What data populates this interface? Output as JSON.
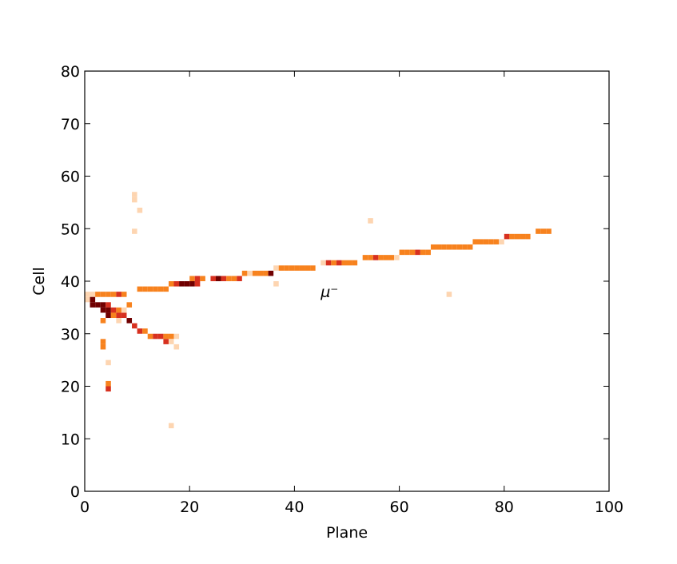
{
  "chart_data": {
    "type": "heatmap",
    "xlabel": "Plane",
    "ylabel": "Cell",
    "xlim": [
      0,
      100
    ],
    "xticks": [
      0,
      20,
      40,
      60,
      80,
      100
    ],
    "ylim": [
      0,
      80
    ],
    "yticks": [
      0,
      10,
      20,
      30,
      40,
      50,
      60,
      70,
      80
    ],
    "annotations": [
      {
        "text": "μ⁻",
        "x": 45,
        "y": 37
      }
    ],
    "x": [
      0,
      1,
      2,
      3,
      4,
      5,
      6,
      7,
      10,
      11,
      12,
      13,
      14,
      15,
      16,
      17,
      18,
      19,
      20,
      21,
      20,
      21,
      22,
      24,
      25,
      26,
      27,
      28,
      29,
      30,
      31,
      32,
      33,
      34,
      35,
      36,
      37,
      38,
      39,
      40,
      41,
      42,
      43,
      45,
      46,
      47,
      48,
      49,
      50,
      51,
      53,
      54,
      55,
      56,
      57,
      58,
      59,
      60,
      61,
      62,
      63,
      64,
      65,
      66,
      67,
      68,
      69,
      70,
      71,
      72,
      73,
      74,
      75,
      76,
      77,
      78,
      79,
      80,
      81,
      82,
      83,
      84,
      86,
      87,
      88,
      0,
      1,
      1,
      2,
      3,
      4,
      3,
      4,
      5,
      6,
      4,
      5,
      6,
      7,
      6,
      8,
      9,
      10,
      11,
      12,
      13,
      14,
      15,
      16,
      17,
      15,
      16,
      17,
      3,
      3,
      3,
      4,
      4,
      4,
      9,
      9,
      10,
      9,
      16,
      54,
      69,
      36,
      8,
      7
    ],
    "y": [
      37,
      37,
      37,
      37,
      37,
      37,
      37,
      37,
      38,
      38,
      38,
      38,
      38,
      38,
      39,
      39,
      39,
      39,
      39,
      39,
      40,
      40,
      40,
      40,
      40,
      40,
      40,
      40,
      40,
      41,
      41,
      41,
      41,
      41,
      41,
      42,
      42,
      42,
      42,
      42,
      42,
      42,
      42,
      43,
      43,
      43,
      43,
      43,
      43,
      43,
      44,
      44,
      44,
      44,
      44,
      44,
      44,
      45,
      45,
      45,
      45,
      45,
      45,
      46,
      46,
      46,
      46,
      46,
      46,
      46,
      46,
      47,
      47,
      47,
      47,
      47,
      47,
      48,
      48,
      48,
      48,
      48,
      49,
      49,
      49,
      36,
      36,
      35,
      35,
      35,
      35,
      34,
      34,
      34,
      34,
      33,
      33,
      33,
      33,
      32,
      32,
      31,
      30,
      30,
      29,
      29,
      29,
      29,
      29,
      29,
      28,
      28,
      27,
      32,
      28,
      27,
      24,
      20,
      19,
      56,
      55,
      53,
      49,
      12,
      51,
      37,
      39,
      35,
      34
    ],
    "colors": [
      "#fdd5b1",
      "#fdd5b1",
      "#f7821e",
      "#f7821e",
      "#f7821e",
      "#f7821e",
      "#d7301f",
      "#f7821e",
      "#f7821e",
      "#f7821e",
      "#f7821e",
      "#f7821e",
      "#f7821e",
      "#f7821e",
      "#f7821e",
      "#d7301f",
      "#700000",
      "#700000",
      "#700000",
      "#d7301f",
      "#f7821e",
      "#d7301f",
      "#f7821e",
      "#d7301f",
      "#700000",
      "#d7301f",
      "#f7821e",
      "#f7821e",
      "#d7301f",
      "#f7821e",
      "#fdd5b1",
      "#f7821e",
      "#f7821e",
      "#f7821e",
      "#700000",
      "#fdd5b1",
      "#f7821e",
      "#f7821e",
      "#f7821e",
      "#f7821e",
      "#f7821e",
      "#f7821e",
      "#f7821e",
      "#fdd5b1",
      "#d7301f",
      "#f7821e",
      "#d7301f",
      "#f7821e",
      "#f7821e",
      "#f7821e",
      "#f7821e",
      "#f7821e",
      "#d7301f",
      "#f7821e",
      "#f7821e",
      "#f7821e",
      "#fdd5b1",
      "#f7821e",
      "#f7821e",
      "#f7821e",
      "#d7301f",
      "#f7821e",
      "#f7821e",
      "#f7821e",
      "#f7821e",
      "#f7821e",
      "#f7821e",
      "#f7821e",
      "#f7821e",
      "#f7821e",
      "#f7821e",
      "#f7821e",
      "#f7821e",
      "#f7821e",
      "#f7821e",
      "#f7821e",
      "#fdd5b1",
      "#d7301f",
      "#f7821e",
      "#f7821e",
      "#f7821e",
      "#f7821e",
      "#f7821e",
      "#f7821e",
      "#f7821e",
      "#fdd5b1",
      "#700000",
      "#700000",
      "#700000",
      "#700000",
      "#d7301f",
      "#700000",
      "#700000",
      "#d7301f",
      "#f7821e",
      "#700000",
      "#f7821e",
      "#d7301f",
      "#d7301f",
      "#fdd5b1",
      "#700000",
      "#d7301f",
      "#d7301f",
      "#f7821e",
      "#f7821e",
      "#d7301f",
      "#d7301f",
      "#f7821e",
      "#f7821e",
      "#fdd5b1",
      "#d7301f",
      "#fdd5b1",
      "#fdd5b1",
      "#f7821e",
      "#f7821e",
      "#f7821e",
      "#fdd5b1",
      "#f7821e",
      "#d7301f",
      "#fdd5b1",
      "#fdd5b1",
      "#fdd5b1",
      "#fdd5b1",
      "#fdd5b1",
      "#fdd5b1",
      "#fdd5b1",
      "#fdd5b1",
      "#f7821e",
      "#fdd5b1"
    ]
  }
}
